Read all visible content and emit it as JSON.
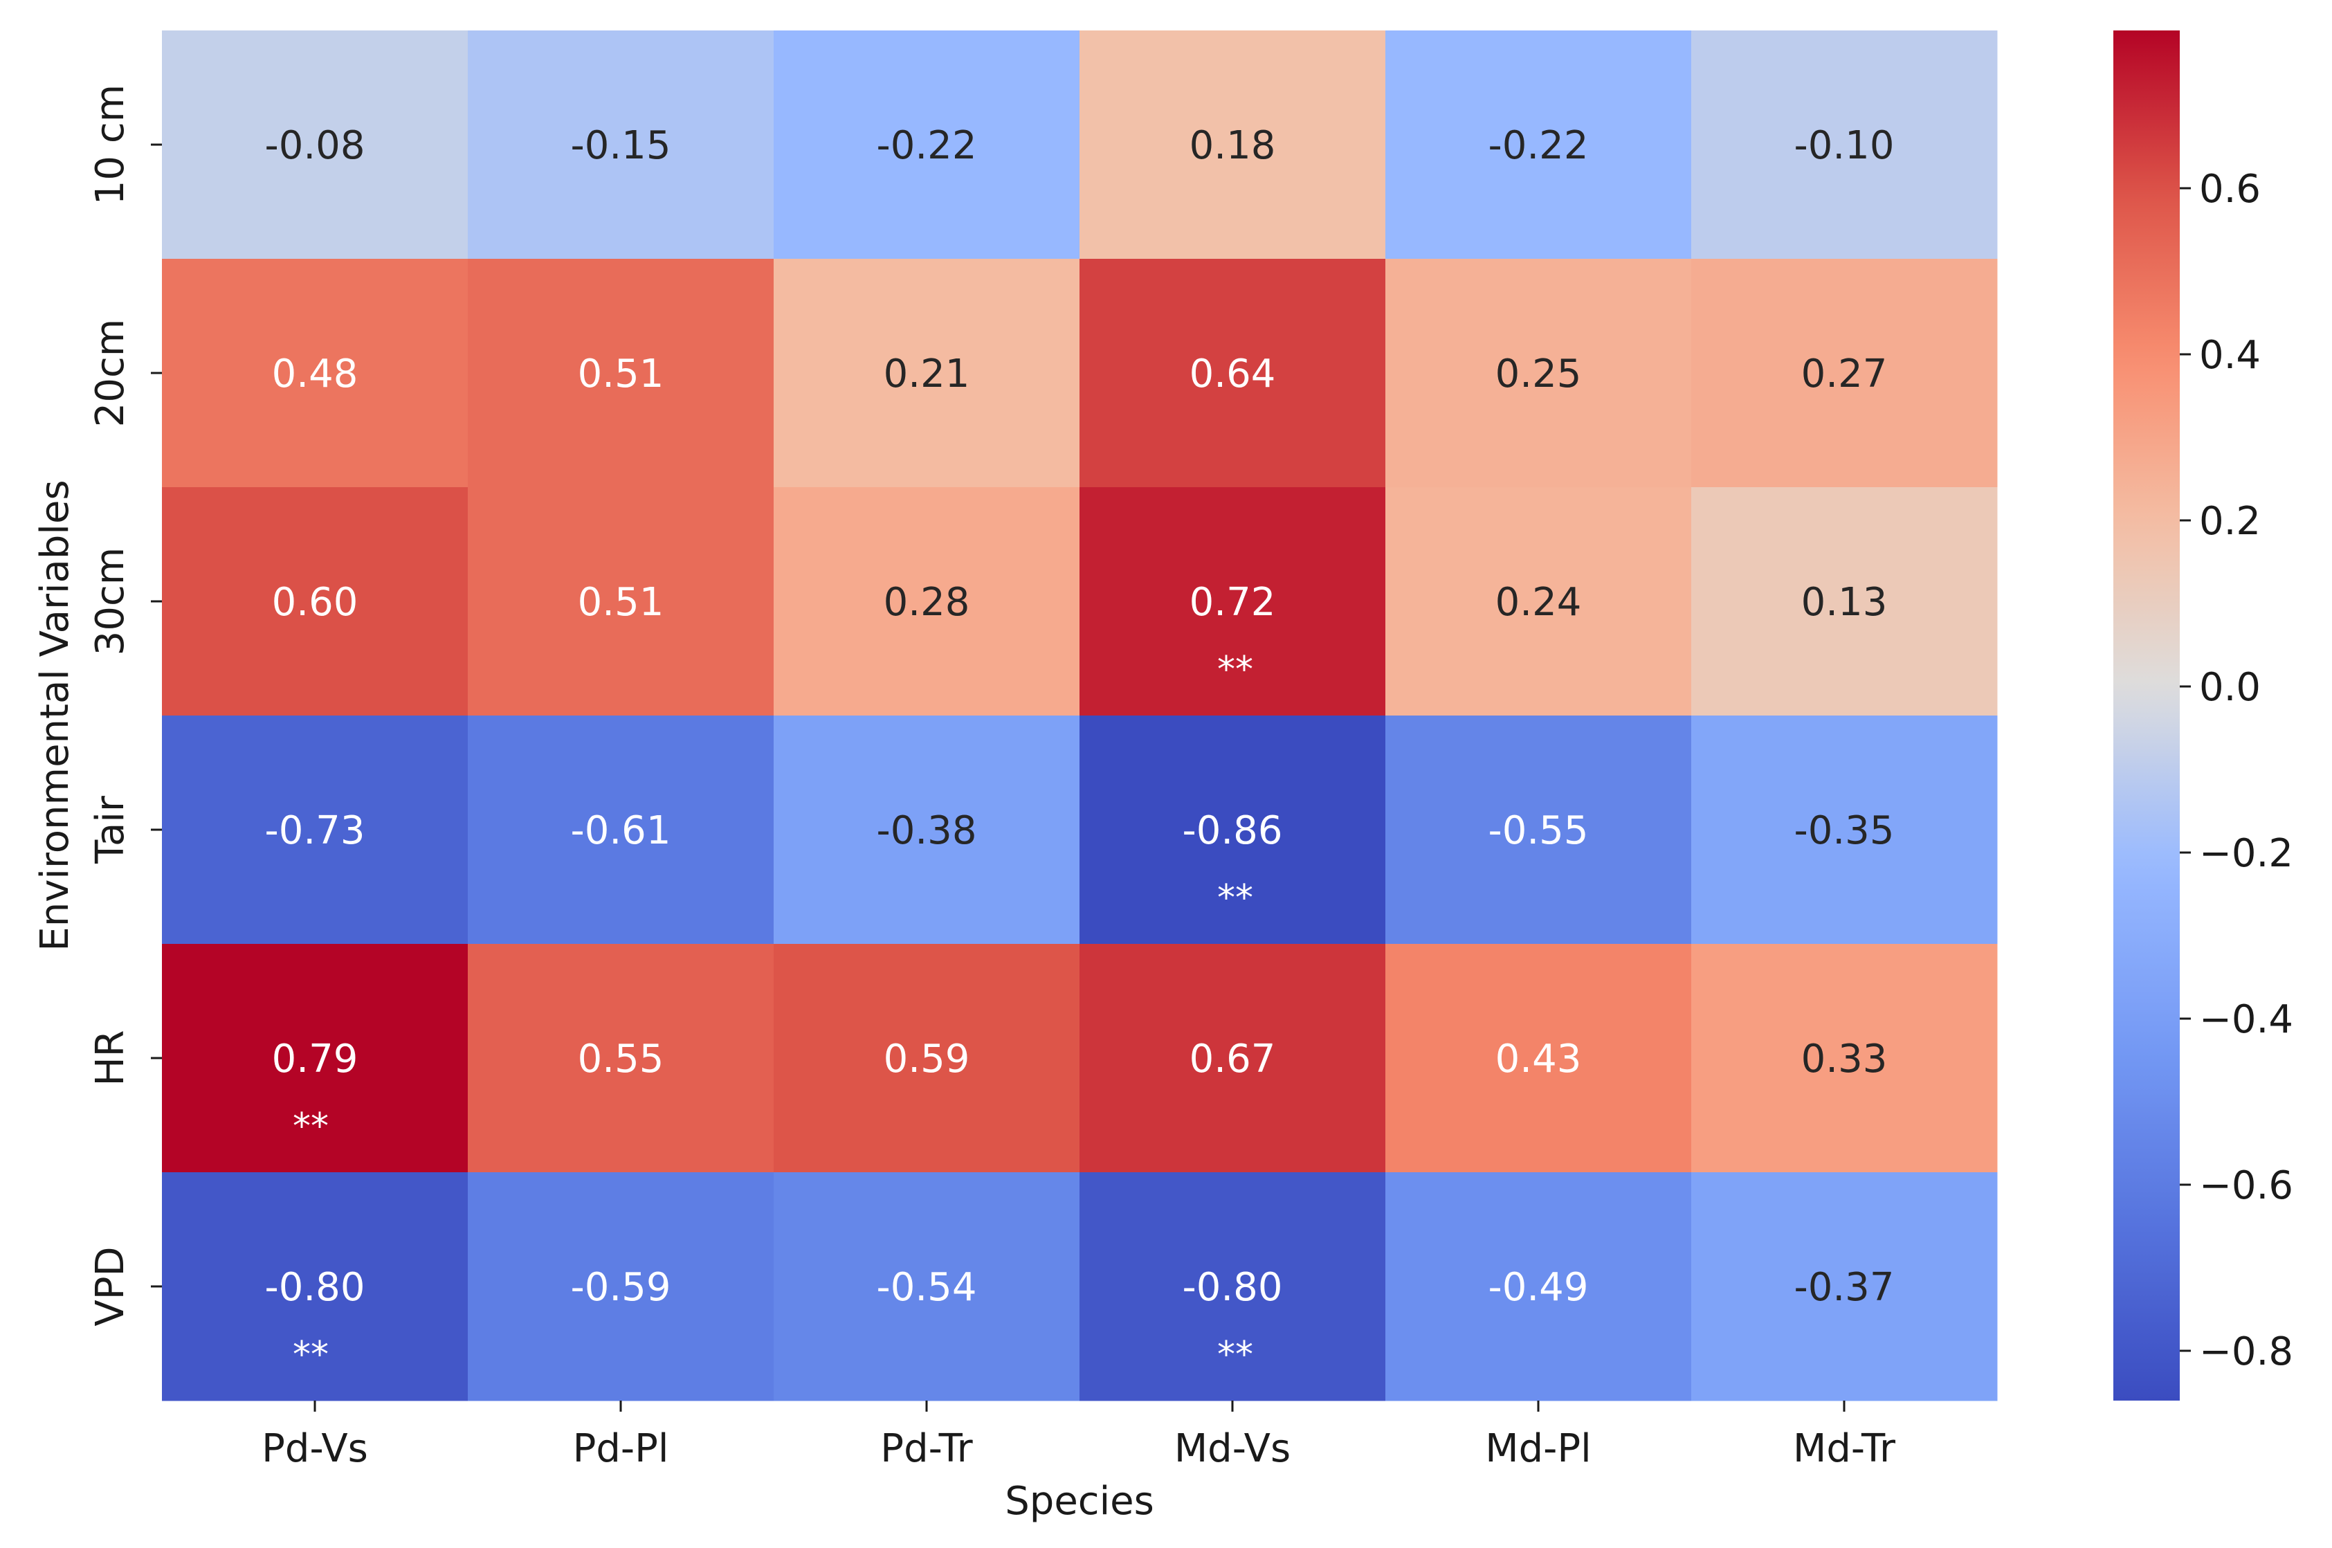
{
  "chart_data": {
    "type": "heatmap",
    "xlabel": "Species",
    "ylabel": "Environmental Variables",
    "columns": [
      "Pd-Vs",
      "Pd-Pl",
      "Pd-Tr",
      "Md-Vs",
      "Md-Pl",
      "Md-Tr"
    ],
    "rows": [
      "10 cm",
      "20cm",
      "30cm",
      "Tair",
      "HR",
      "VPD"
    ],
    "values": [
      [
        -0.08,
        -0.15,
        -0.22,
        0.18,
        -0.22,
        -0.1
      ],
      [
        0.48,
        0.51,
        0.21,
        0.64,
        0.25,
        0.27
      ],
      [
        0.6,
        0.51,
        0.28,
        0.72,
        0.24,
        0.13
      ],
      [
        -0.73,
        -0.61,
        -0.38,
        -0.86,
        -0.55,
        -0.35
      ],
      [
        0.79,
        0.55,
        0.59,
        0.67,
        0.43,
        0.33
      ],
      [
        -0.8,
        -0.59,
        -0.54,
        -0.8,
        -0.49,
        -0.37
      ]
    ],
    "significance": [
      [
        "",
        "",
        "",
        "",
        "",
        ""
      ],
      [
        "",
        "",
        "",
        "",
        "",
        ""
      ],
      [
        "",
        "",
        "",
        "**",
        "",
        ""
      ],
      [
        "",
        "",
        "",
        "**",
        "",
        ""
      ],
      [
        "**",
        "",
        "",
        "",
        "",
        ""
      ],
      [
        "**",
        "",
        "",
        "**",
        "",
        ""
      ]
    ],
    "colormap": "coolwarm",
    "color_range": [
      -0.86,
      0.79
    ],
    "colorbar_ticks": [
      0.6,
      0.4,
      0.2,
      0.0,
      -0.2,
      -0.4,
      -0.6,
      -0.8
    ],
    "colorbar_tick_labels": [
      "0.6",
      "0.4",
      "0.2",
      "0.0",
      "−0.2",
      "−0.4",
      "−0.6",
      "−0.8"
    ]
  }
}
